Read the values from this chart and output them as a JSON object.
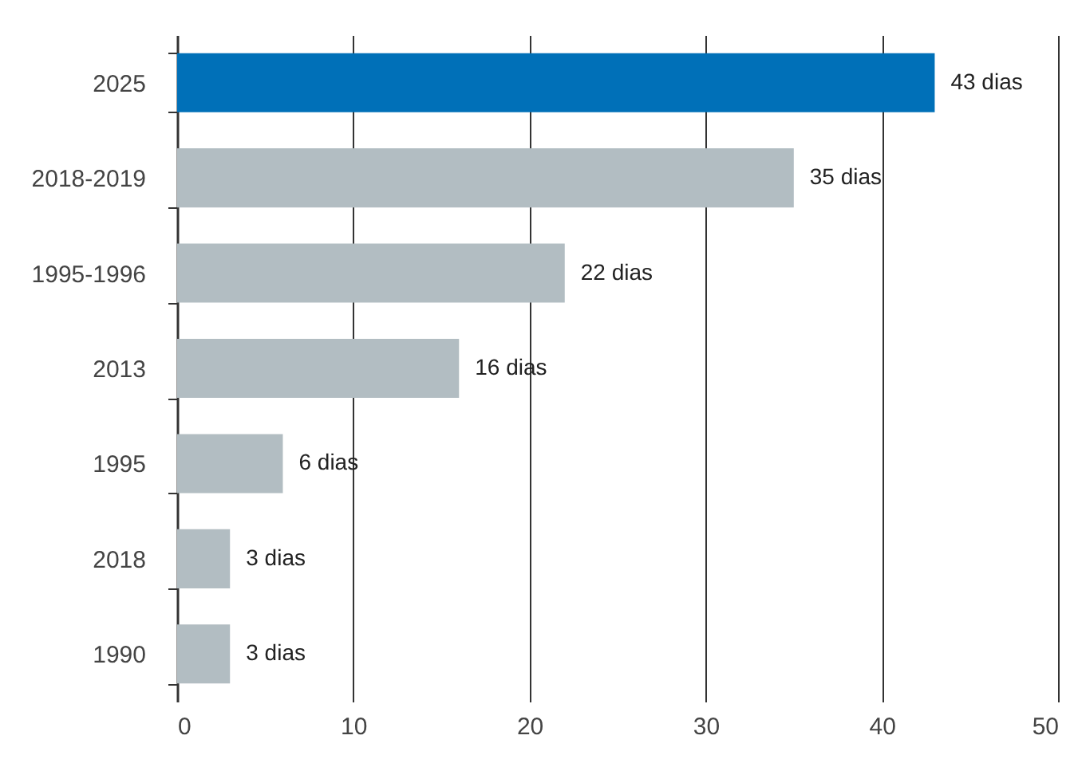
{
  "chart_data": {
    "type": "bar",
    "orientation": "horizontal",
    "categories": [
      "2025",
      "2018-2019",
      "1995-1996",
      "2013",
      "1995",
      "2018",
      "1990"
    ],
    "values": [
      43,
      35,
      22,
      16,
      6,
      3,
      3
    ],
    "colors": [
      "#0070b8",
      "#b2bdc2",
      "#b2bdc2",
      "#b2bdc2",
      "#b2bdc2",
      "#b2bdc2",
      "#b2bdc2"
    ],
    "value_labels": [
      "43 dias",
      "35 dias",
      "22 dias",
      "16 dias",
      "6 dias",
      "3 dias",
      "3 dias"
    ],
    "xlim": [
      0,
      50
    ],
    "xticks": [
      0,
      10,
      20,
      30,
      40,
      50
    ],
    "grid": "x"
  }
}
